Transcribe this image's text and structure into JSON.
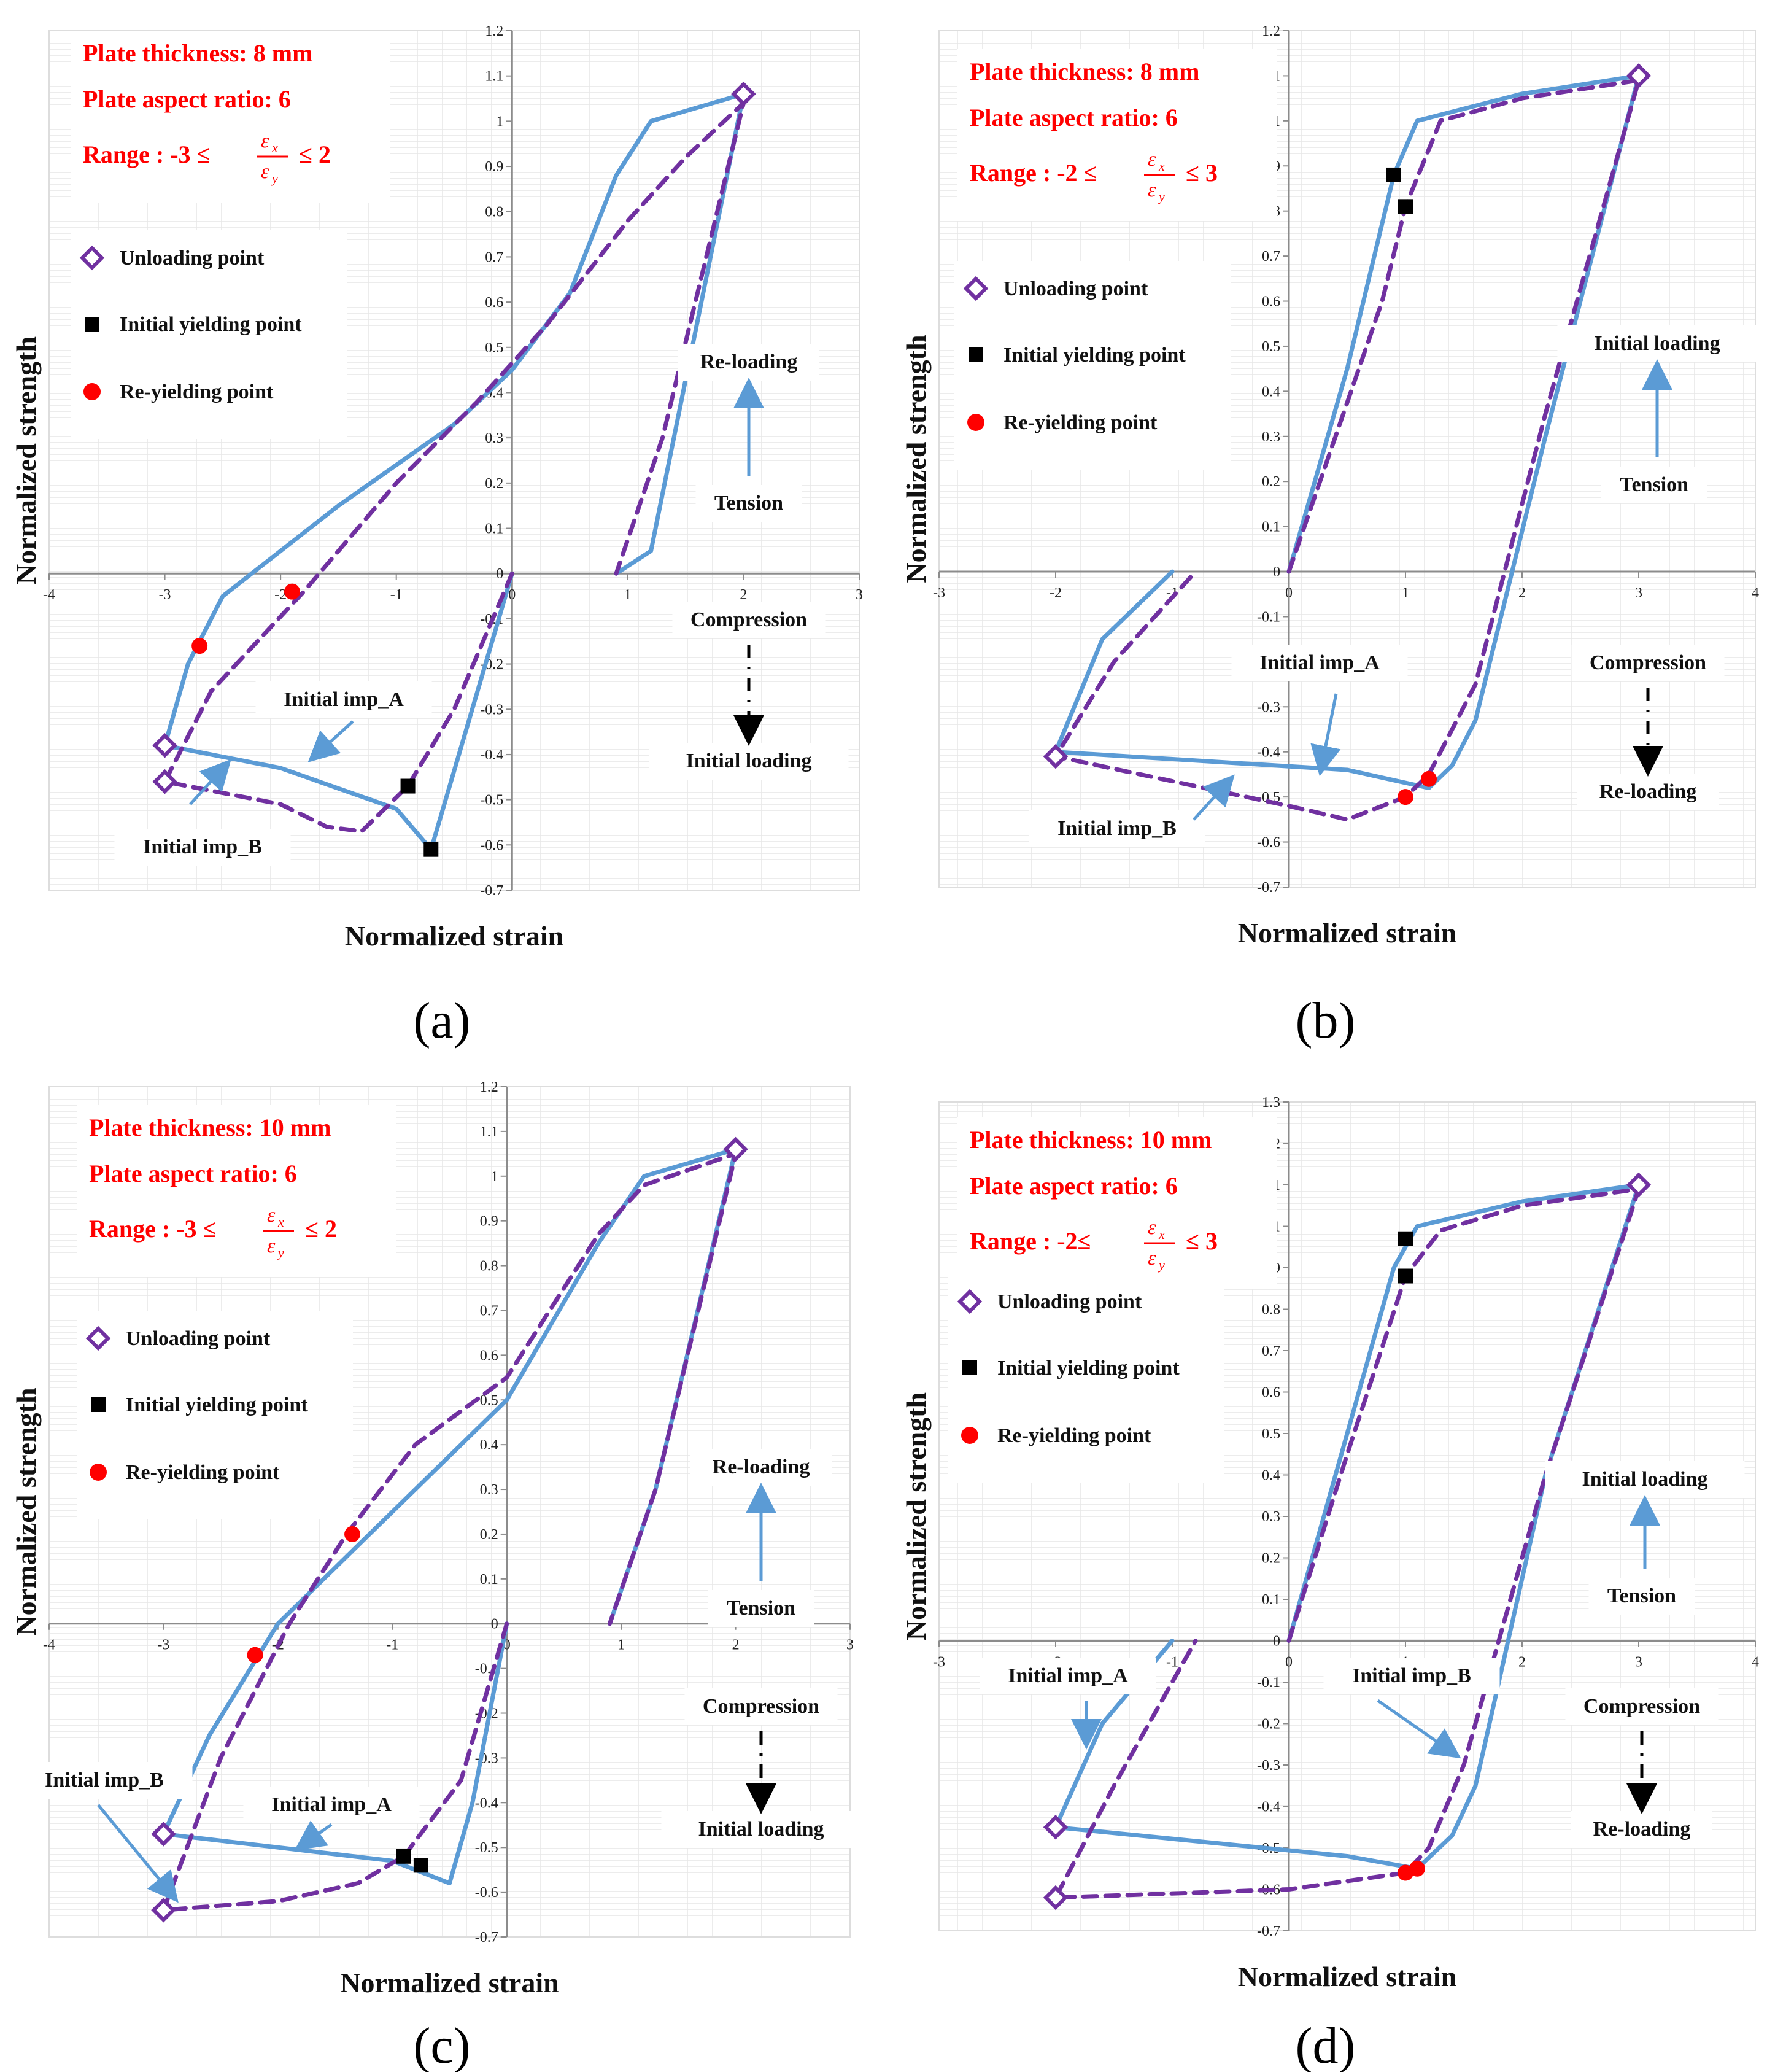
{
  "figure": {
    "panels": [
      "(a)",
      "(b)",
      "(c)",
      "(d)"
    ]
  },
  "chart_data": [
    {
      "type": "line",
      "label": "(a)",
      "title": "",
      "xlabel": "Normalized  strain",
      "ylabel": "Normalized  strength",
      "xlim": [
        -4,
        3
      ],
      "ylim": [
        -0.7,
        1.2
      ],
      "xticks": [
        -4,
        -3,
        -2,
        -1,
        0,
        1,
        2,
        3
      ],
      "yticks": [
        -0.7,
        -0.6,
        -0.5,
        -0.4,
        -0.3,
        -0.2,
        -0.1,
        0,
        0.1,
        0.2,
        0.3,
        0.4,
        0.5,
        0.6,
        0.7,
        0.8,
        0.9,
        1,
        1.1,
        1.2
      ],
      "info_lines": [
        "Plate thickness: 8 mm",
        "Plate aspect ratio: 6",
        "Range : -3 ≤",
        "≤ 2"
      ],
      "legend": [
        "Unloading point",
        "Initial yielding point",
        "Re-yielding point"
      ],
      "annotations": [
        "Re-loading",
        "Tension",
        "Compression",
        "Initial loading",
        "Initial imp_A",
        "Initial imp_B"
      ],
      "series": [
        {
          "name": "Initial imp_A",
          "color": "#5b9bd5",
          "style": "solid",
          "points": [
            [
              0,
              0
            ],
            [
              -0.7,
              -0.61
            ],
            [
              -1,
              -0.52
            ],
            [
              -2,
              -0.43
            ],
            [
              -3,
              -0.38
            ],
            [
              -2.8,
              -0.2
            ],
            [
              -2.5,
              -0.05
            ],
            [
              -1.5,
              0.15
            ],
            [
              -0.5,
              0.33
            ],
            [
              0,
              0.45
            ],
            [
              0.5,
              0.62
            ],
            [
              0.9,
              0.88
            ],
            [
              1.2,
              1.0
            ],
            [
              2,
              1.06
            ],
            [
              1.2,
              0.05
            ],
            [
              0.9,
              0
            ]
          ]
        },
        {
          "name": "Initial imp_B",
          "color": "#7030a0",
          "style": "dashed",
          "points": [
            [
              0,
              0
            ],
            [
              -0.5,
              -0.3
            ],
            [
              -0.9,
              -0.47
            ],
            [
              -1.3,
              -0.57
            ],
            [
              -1.6,
              -0.56
            ],
            [
              -2,
              -0.51
            ],
            [
              -3,
              -0.46
            ],
            [
              -2.6,
              -0.26
            ],
            [
              -1.8,
              -0.04
            ],
            [
              -1,
              0.2
            ],
            [
              -0.3,
              0.38
            ],
            [
              0.3,
              0.55
            ],
            [
              1,
              0.78
            ],
            [
              1.5,
              0.92
            ],
            [
              2,
              1.04
            ],
            [
              1.3,
              0.3
            ],
            [
              0.9,
              0
            ]
          ]
        }
      ],
      "unloading_points": [
        [
          2,
          1.06
        ],
        [
          -3,
          -0.38
        ],
        [
          -3,
          -0.46
        ]
      ],
      "yield_points": [
        [
          -0.9,
          -0.47
        ],
        [
          -0.7,
          -0.61
        ]
      ],
      "reyield_points": [
        [
          -2.7,
          -0.16
        ],
        [
          -1.9,
          -0.04
        ]
      ]
    },
    {
      "type": "line",
      "label": "(b)",
      "title": "",
      "xlabel": "Normalized  strain",
      "ylabel": "Normalized  strength",
      "xlim": [
        -3,
        4
      ],
      "ylim": [
        -0.7,
        1.2
      ],
      "xticks": [
        -3,
        -2,
        -1,
        0,
        1,
        2,
        3,
        4
      ],
      "yticks": [
        -0.7,
        -0.6,
        -0.5,
        -0.4,
        -0.3,
        -0.2,
        -0.1,
        0,
        0.1,
        0.2,
        0.3,
        0.4,
        0.5,
        0.6,
        0.7,
        0.8,
        0.9,
        1,
        1.1,
        1.2
      ],
      "info_lines": [
        "Plate thickness: 8 mm",
        "Plate aspect ratio: 6",
        "Range : -2 ≤",
        "≤ 3"
      ],
      "legend": [
        "Unloading point",
        "Initial yielding point",
        "Re-yielding point"
      ],
      "annotations": [
        "Initial loading",
        "Tension",
        "Compression",
        "Re-loading",
        "Initial imp_A",
        "Initial imp_B"
      ],
      "series": [
        {
          "name": "Initial imp_A",
          "color": "#5b9bd5",
          "style": "solid",
          "points": [
            [
              0,
              0
            ],
            [
              0.5,
              0.45
            ],
            [
              0.9,
              0.88
            ],
            [
              1.1,
              1.0
            ],
            [
              2,
              1.06
            ],
            [
              3,
              1.1
            ],
            [
              2.2,
              0.3
            ],
            [
              1.6,
              -0.33
            ],
            [
              1.4,
              -0.43
            ],
            [
              1.2,
              -0.48
            ],
            [
              0.5,
              -0.44
            ],
            [
              -2,
              -0.4
            ],
            [
              -1.6,
              -0.15
            ],
            [
              -1,
              0
            ]
          ]
        },
        {
          "name": "Initial imp_B",
          "color": "#7030a0",
          "style": "dashed",
          "points": [
            [
              0,
              0
            ],
            [
              0.4,
              0.3
            ],
            [
              0.8,
              0.6
            ],
            [
              1,
              0.81
            ],
            [
              1.3,
              1.0
            ],
            [
              2,
              1.05
            ],
            [
              3,
              1.09
            ],
            [
              2.2,
              0.35
            ],
            [
              1.6,
              -0.25
            ],
            [
              1.2,
              -0.45
            ],
            [
              1,
              -0.5
            ],
            [
              0.5,
              -0.55
            ],
            [
              0,
              -0.52
            ],
            [
              -2,
              -0.41
            ],
            [
              -1.5,
              -0.2
            ],
            [
              -0.8,
              0
            ]
          ]
        }
      ],
      "unloading_points": [
        [
          3,
          1.1
        ],
        [
          -2,
          -0.41
        ]
      ],
      "yield_points": [
        [
          0.9,
          0.88
        ],
        [
          1,
          0.81
        ]
      ],
      "reyield_points": [
        [
          1,
          -0.5
        ],
        [
          1.2,
          -0.46
        ]
      ]
    },
    {
      "type": "line",
      "label": "(c)",
      "title": "",
      "xlabel": "Normalized  strain",
      "ylabel": "Normalized  strength",
      "xlim": [
        -4,
        3
      ],
      "ylim": [
        -0.7,
        1.2
      ],
      "xticks": [
        -4,
        -3,
        -2,
        -1,
        0,
        1,
        2,
        3
      ],
      "yticks": [
        -0.7,
        -0.6,
        -0.5,
        -0.4,
        -0.3,
        -0.2,
        -0.1,
        0,
        0.1,
        0.2,
        0.3,
        0.4,
        0.5,
        0.6,
        0.7,
        0.8,
        0.9,
        1,
        1.1,
        1.2
      ],
      "info_lines": [
        "Plate thickness: 10 mm",
        "Plate aspect ratio: 6",
        "Range : -3 ≤",
        "≤ 2"
      ],
      "legend": [
        "Unloading point",
        "Initial yielding point",
        "Re-yielding point"
      ],
      "annotations": [
        "Re-loading",
        "Tension",
        "Compression",
        "Initial loading",
        "Initial imp_A",
        "Initial imp_B"
      ],
      "series": [
        {
          "name": "Initial imp_A",
          "color": "#5b9bd5",
          "style": "solid",
          "points": [
            [
              0,
              0
            ],
            [
              -0.3,
              -0.4
            ],
            [
              -0.5,
              -0.58
            ],
            [
              -0.8,
              -0.55
            ],
            [
              -1,
              -0.53
            ],
            [
              -2,
              -0.5
            ],
            [
              -3,
              -0.47
            ],
            [
              -2.6,
              -0.25
            ],
            [
              -2,
              0
            ],
            [
              -1,
              0.25
            ],
            [
              0,
              0.5
            ],
            [
              0.8,
              0.85
            ],
            [
              1.2,
              1.0
            ],
            [
              2,
              1.06
            ],
            [
              1.3,
              0.3
            ],
            [
              0.9,
              0
            ]
          ]
        },
        {
          "name": "Initial imp_B",
          "color": "#7030a0",
          "style": "dashed",
          "points": [
            [
              0,
              0
            ],
            [
              -0.4,
              -0.35
            ],
            [
              -0.9,
              -0.52
            ],
            [
              -1.3,
              -0.58
            ],
            [
              -2,
              -0.62
            ],
            [
              -3,
              -0.64
            ],
            [
              -2.5,
              -0.3
            ],
            [
              -1.9,
              0
            ],
            [
              -1.4,
              0.2
            ],
            [
              -0.8,
              0.4
            ],
            [
              0,
              0.55
            ],
            [
              0.8,
              0.87
            ],
            [
              1.2,
              0.98
            ],
            [
              2,
              1.05
            ],
            [
              1.3,
              0.3
            ],
            [
              0.9,
              0
            ]
          ]
        }
      ],
      "unloading_points": [
        [
          2,
          1.06
        ],
        [
          -3,
          -0.47
        ],
        [
          -3,
          -0.64
        ]
      ],
      "yield_points": [
        [
          -0.9,
          -0.52
        ],
        [
          -0.75,
          -0.54
        ]
      ],
      "reyield_points": [
        [
          -2.2,
          -0.07
        ],
        [
          -1.35,
          0.2
        ]
      ]
    },
    {
      "type": "line",
      "label": "(d)",
      "title": "",
      "xlabel": "Normalized  strain",
      "ylabel": "Normalized  strength",
      "xlim": [
        -3,
        4
      ],
      "ylim": [
        -0.7,
        1.3
      ],
      "xticks": [
        -3,
        -2,
        -1,
        0,
        1,
        2,
        3,
        4
      ],
      "yticks": [
        -0.7,
        -0.6,
        -0.5,
        -0.4,
        -0.3,
        -0.2,
        -0.1,
        0,
        0.1,
        0.2,
        0.3,
        0.4,
        0.5,
        0.6,
        0.7,
        0.8,
        0.9,
        1,
        1.1,
        1.2,
        1.3
      ],
      "info_lines": [
        "Plate thickness: 10 mm",
        "Plate aspect ratio: 6",
        "Range : -2≤",
        "≤ 3"
      ],
      "legend": [
        "Unloading point",
        "Initial yielding point",
        "Re-yielding point"
      ],
      "annotations": [
        "Initial loading",
        "Tension",
        "Compression",
        "Re-loading",
        "Initial imp_A",
        "Initial imp_B"
      ],
      "series": [
        {
          "name": "Initial imp_A",
          "color": "#5b9bd5",
          "style": "solid",
          "points": [
            [
              0,
              0
            ],
            [
              0.5,
              0.5
            ],
            [
              0.9,
              0.9
            ],
            [
              1.1,
              1.0
            ],
            [
              2,
              1.06
            ],
            [
              3,
              1.1
            ],
            [
              2.2,
              0.4
            ],
            [
              1.6,
              -0.35
            ],
            [
              1.4,
              -0.47
            ],
            [
              1.1,
              -0.55
            ],
            [
              0.5,
              -0.52
            ],
            [
              -2,
              -0.45
            ],
            [
              -1.6,
              -0.2
            ],
            [
              -1,
              0
            ]
          ]
        },
        {
          "name": "Initial imp_B",
          "color": "#7030a0",
          "style": "dashed",
          "points": [
            [
              0,
              0
            ],
            [
              0.5,
              0.45
            ],
            [
              1,
              0.88
            ],
            [
              1.3,
              0.99
            ],
            [
              2,
              1.05
            ],
            [
              3,
              1.09
            ],
            [
              2.2,
              0.4
            ],
            [
              1.5,
              -0.3
            ],
            [
              1.2,
              -0.5
            ],
            [
              1,
              -0.56
            ],
            [
              0,
              -0.6
            ],
            [
              -2,
              -0.62
            ],
            [
              -1.5,
              -0.35
            ],
            [
              -0.8,
              0
            ]
          ]
        }
      ],
      "unloading_points": [
        [
          3,
          1.1
        ],
        [
          -2,
          -0.45
        ],
        [
          -2,
          -0.62
        ]
      ],
      "yield_points": [
        [
          1,
          0.97
        ],
        [
          1,
          0.88
        ]
      ],
      "reyield_points": [
        [
          1,
          -0.56
        ],
        [
          1.1,
          -0.55
        ]
      ]
    }
  ]
}
